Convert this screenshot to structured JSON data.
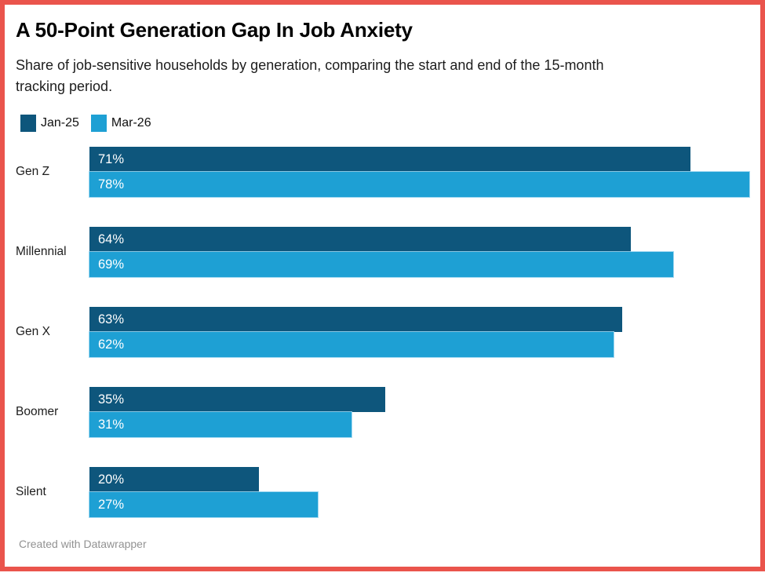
{
  "header": {
    "title": "A 50-Point Generation Gap In Job Anxiety",
    "subtitle": "Share of job-sensitive households by generation, comparing the start and end of the 15-month\ntracking period."
  },
  "legend": [
    {
      "label": "Jan-25",
      "color": "#0e567c"
    },
    {
      "label": "Mar-26",
      "color": "#1ea0d4"
    }
  ],
  "colors": {
    "series_jan": "#0e567c",
    "series_mar": "#1ea0d4",
    "frame_border": "#ea544c",
    "value_label_text": "#ffffff",
    "credit_text": "#929292"
  },
  "chart_data": {
    "type": "bar",
    "orientation": "horizontal",
    "title": "A 50-Point Generation Gap In Job Anxiety",
    "subtitle": "Share of job-sensitive households by generation, comparing the start and end of the 15-month tracking period.",
    "categories": [
      "Gen Z",
      "Millennial",
      "Gen X",
      "Boomer",
      "Silent"
    ],
    "series": [
      {
        "name": "Jan-25",
        "color": "#0e567c",
        "values": [
          71,
          64,
          63,
          35,
          20
        ]
      },
      {
        "name": "Mar-26",
        "color": "#1ea0d4",
        "values": [
          78,
          69,
          62,
          31,
          27
        ]
      }
    ],
    "value_suffix": "%",
    "xlim": [
      0,
      78
    ],
    "grid": false,
    "legend_position": "top-left",
    "value_labels": "inside-start"
  },
  "footer": {
    "credit": "Created with Datawrapper"
  }
}
